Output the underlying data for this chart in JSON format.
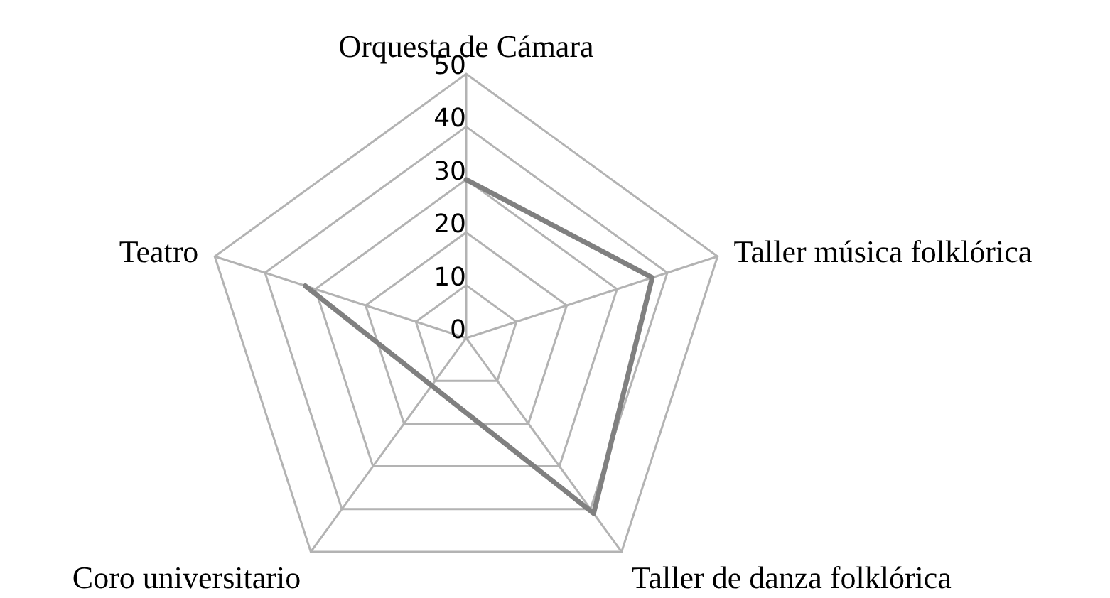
{
  "chart_data": {
    "type": "radar",
    "categories": [
      "Orquesta de Cámara",
      "Taller música folklórica",
      "Taller de danza folklórica",
      "Coro universitario",
      "Teatro"
    ],
    "series": [
      {
        "color": "#808080",
        "values": [
          30,
          37,
          41,
          null,
          32
        ]
      }
    ],
    "ylim": [
      0,
      50
    ],
    "yticks": [
      0,
      10,
      20,
      30,
      40,
      50
    ],
    "grid": true,
    "marker": "none"
  }
}
